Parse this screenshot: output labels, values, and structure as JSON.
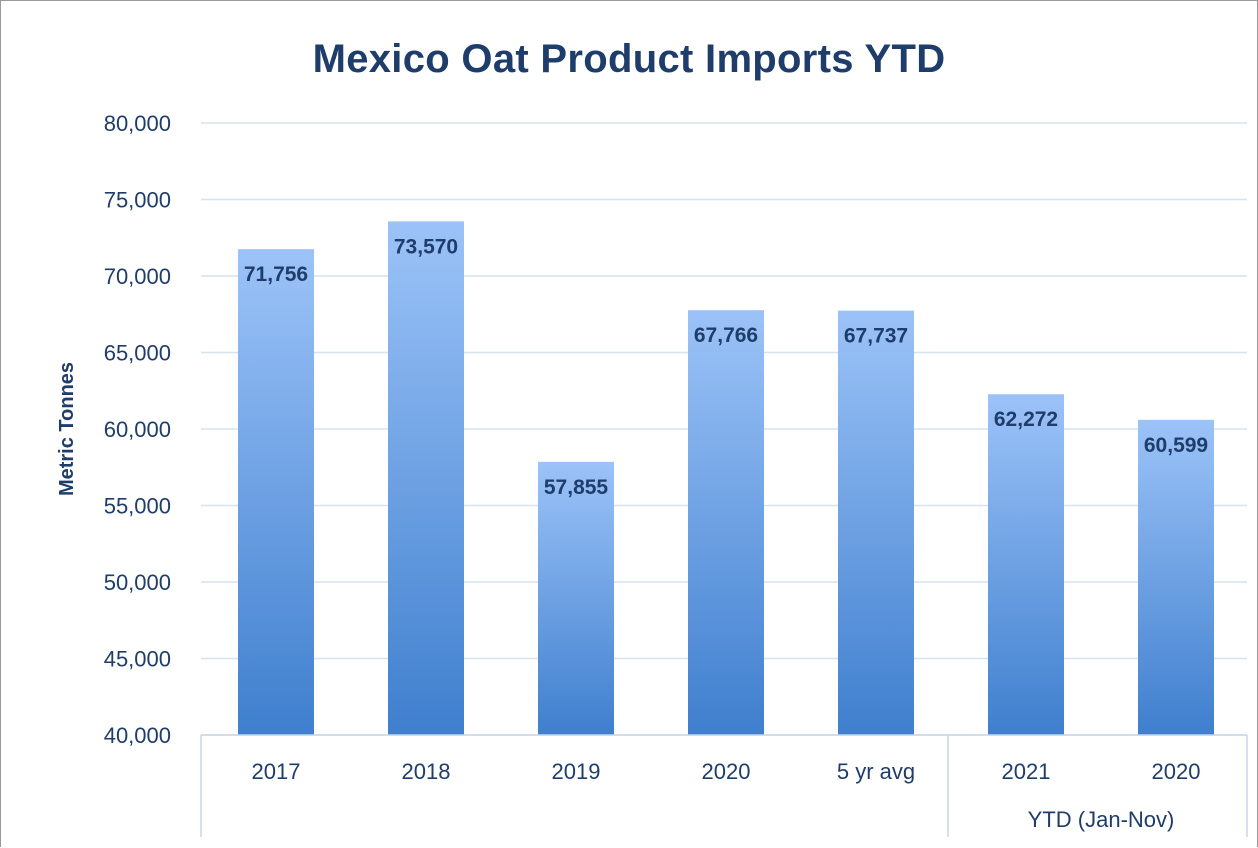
{
  "chart_data": {
    "type": "bar",
    "title": "Mexico Oat Product Imports YTD",
    "ylabel": "Metric Tonnes",
    "xlabel": "",
    "ylim": [
      40000,
      80000
    ],
    "yticks": [
      40000,
      45000,
      50000,
      55000,
      60000,
      65000,
      70000,
      75000,
      80000
    ],
    "ytick_labels": [
      "40,000",
      "45,000",
      "50,000",
      "55,000",
      "60,000",
      "65,000",
      "70,000",
      "75,000",
      "80,000"
    ],
    "grid": true,
    "legend": "none",
    "bar_color_top": "#9cc3f8",
    "bar_color_bottom": "#3f7fce",
    "text_color": "#1f3d6b",
    "gridline_color": "#d6e3f1",
    "categories": [
      "2017",
      "2018",
      "2019",
      "2020",
      "5 yr avg",
      "2021",
      "2020"
    ],
    "values": [
      71756,
      73570,
      57855,
      67766,
      67737,
      62272,
      60599
    ],
    "data_labels": [
      "71,756",
      "73,570",
      "57,855",
      "67,766",
      "67,737",
      "62,272",
      "60,599"
    ],
    "category_groups": [
      {
        "label": "",
        "categories": [
          "2017",
          "2018",
          "2019",
          "2020",
          "5 yr avg"
        ]
      },
      {
        "label": "YTD (Jan-Nov)",
        "categories": [
          "2021",
          "2020"
        ]
      }
    ]
  }
}
